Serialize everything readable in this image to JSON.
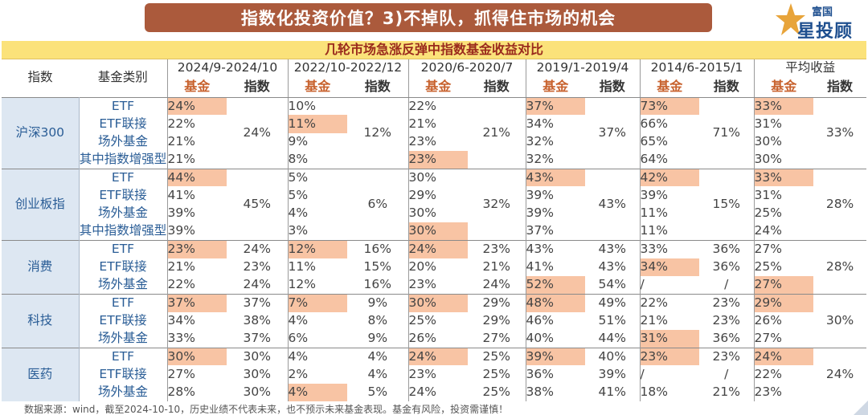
{
  "title": "指数化投资价值？3)不掉队，抓得住市场的机会",
  "logo": {
    "small": "富国",
    "big": "星投顾",
    "icon": "star-icon"
  },
  "table": {
    "caption": "几轮市场急涨反弹中指数基金收益对比",
    "head_index": "指数",
    "head_type": "基金类别",
    "periods": [
      "2024/9-2024/10",
      "2022/10-2022/12",
      "2020/6-2020/7",
      "2019/1-2019/4",
      "2014/6-2015/1",
      "平均收益"
    ],
    "sub_fund": "基金",
    "sub_index": "指数",
    "groups": [
      {
        "name": "沪深300",
        "types": [
          "ETF",
          "ETF联接",
          "场外基金",
          "其中指数增强型"
        ],
        "funds": [
          [
            "24%",
            "22%",
            "21%",
            "21%"
          ],
          [
            "10%",
            "11%",
            "9%",
            "8%"
          ],
          [
            "22%",
            "21%",
            "23%",
            "23%"
          ],
          [
            "37%",
            "34%",
            "32%",
            "32%"
          ],
          [
            "73%",
            "66%",
            "65%",
            "64%"
          ],
          [
            "33%",
            "31%",
            "30%",
            "30%"
          ]
        ],
        "index": [
          "24%",
          "12%",
          "21%",
          "37%",
          "71%",
          "33%"
        ]
      },
      {
        "name": "创业板指",
        "types": [
          "ETF",
          "ETF联接",
          "场外基金",
          "其中指数增强型"
        ],
        "funds": [
          [
            "44%",
            "41%",
            "39%",
            "39%"
          ],
          [
            "5%",
            "5%",
            "4%",
            "3%"
          ],
          [
            "30%",
            "29%",
            "30%",
            "30%"
          ],
          [
            "43%",
            "39%",
            "39%",
            "37%"
          ],
          [
            "42%",
            "39%",
            "11%",
            "11%"
          ],
          [
            "33%",
            "31%",
            "25%",
            "24%"
          ]
        ],
        "index": [
          "45%",
          "6%",
          "32%",
          "43%",
          "15%",
          "28%"
        ]
      },
      {
        "name": "消费",
        "types": [
          "ETF",
          "ETF联接",
          "场外基金"
        ],
        "funds": [
          [
            "23%",
            "21%",
            "22%"
          ],
          [
            "12%",
            "11%",
            "12%"
          ],
          [
            "24%",
            "20%",
            "23%"
          ],
          [
            "43%",
            "41%",
            "52%"
          ],
          [
            "33%",
            "34%",
            "/"
          ],
          [
            "27%",
            "25%",
            "27%"
          ]
        ],
        "index_rows": [
          [
            "24%",
            "23%",
            "24%"
          ],
          [
            "16%",
            "15%",
            "16%"
          ],
          [
            "23%",
            "21%",
            "24%"
          ],
          [
            "43%",
            "43%",
            "54%"
          ],
          [
            "36%",
            "36%",
            "/"
          ]
        ],
        "avg_index": "28%"
      },
      {
        "name": "科技",
        "types": [
          "ETF",
          "ETF联接",
          "场外基金"
        ],
        "funds": [
          [
            "37%",
            "34%",
            "33%"
          ],
          [
            "7%",
            "4%",
            "6%"
          ],
          [
            "30%",
            "25%",
            "26%"
          ],
          [
            "48%",
            "46%",
            "40%"
          ],
          [
            "22%",
            "21%",
            "31%"
          ],
          [
            "29%",
            "26%",
            "27%"
          ]
        ],
        "index_rows": [
          [
            "37%",
            "38%",
            "37%"
          ],
          [
            "9%",
            "8%",
            "9%"
          ],
          [
            "29%",
            "29%",
            "27%"
          ],
          [
            "49%",
            "51%",
            "44%"
          ],
          [
            "23%",
            "23%",
            "36%"
          ]
        ],
        "avg_index": "30%"
      },
      {
        "name": "医药",
        "types": [
          "ETF",
          "ETF联接",
          "场外基金"
        ],
        "funds": [
          [
            "30%",
            "27%",
            "28%"
          ],
          [
            "4%",
            "2%",
            "4%"
          ],
          [
            "24%",
            "23%",
            "24%"
          ],
          [
            "39%",
            "36%",
            "38%"
          ],
          [
            "23%",
            "/",
            "18%"
          ],
          [
            "24%",
            "22%",
            "23%"
          ]
        ],
        "index_rows": [
          [
            "30%",
            "30%",
            "30%"
          ],
          [
            "4%",
            "4%",
            "5%"
          ],
          [
            "25%",
            "25%",
            "25%"
          ],
          [
            "40%",
            "39%",
            "41%"
          ],
          [
            "23%",
            "/",
            "21%"
          ]
        ],
        "avg_index": "24%"
      }
    ],
    "highlighted": [
      "0-0-0",
      "0-1-1",
      "0-2-3",
      "0-3-0",
      "0-4-0",
      "0-5-0",
      "1-0-0",
      "1-2-3",
      "1-3-0",
      "1-4-0",
      "1-5-0",
      "2-0-0",
      "2-1-0",
      "2-2-0",
      "2-3-2",
      "2-4-1",
      "2-5-2",
      "3-0-0",
      "3-1-0",
      "3-2-0",
      "3-3-0",
      "3-4-2",
      "3-5-0",
      "4-0-0",
      "4-1-2",
      "4-2-0",
      "4-3-0",
      "4-4-0",
      "4-5-0"
    ],
    "colors": {
      "highlight": "#f8c4a4",
      "index_col": "#dde7f2",
      "caption_bg": "#fbe27a",
      "banner": "#ab5a3c"
    }
  },
  "footer": "数据来源：wind，截至2024-10-10，历史业绩不代表未来，也不预示未来基金表现。基金有风险，投资需谨慎！"
}
